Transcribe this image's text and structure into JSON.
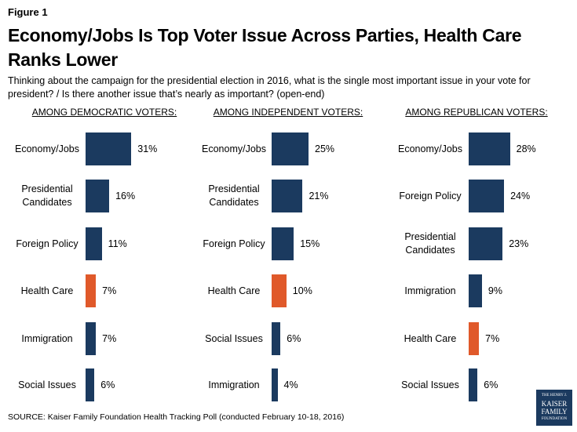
{
  "figure_label": "Figure 1",
  "title": "Economy/Jobs Is Top Voter Issue Across Parties, Health Care Ranks Lower",
  "subtitle": "Thinking about the campaign for the presidential election in 2016, what is the single most important issue in your vote for president? / Is there another issue that’s nearly as important? (open-end)",
  "source": "SOURCE: Kaiser Family Foundation Health Tracking Poll (conducted February 10-18, 2016)",
  "logo": [
    "THE HENRY J.",
    "KAISER",
    "FAMILY",
    "FOUNDATION"
  ],
  "chart_data": [
    {
      "type": "bar",
      "title": "AMONG DEMOCRATIC VOTERS:",
      "categories": [
        "Economy/Jobs",
        "Presidential Candidates",
        "Foreign Policy",
        "Health Care",
        "Immigration",
        "Social Issues"
      ],
      "values": [
        31,
        16,
        11,
        7,
        7,
        6
      ],
      "value_labels": [
        "31%",
        "16%",
        "11%",
        "7%",
        "7%",
        "6%"
      ],
      "colors": [
        "#1b3a5f",
        "#1b3a5f",
        "#1b3a5f",
        "#e0592a",
        "#1b3a5f",
        "#1b3a5f"
      ]
    },
    {
      "type": "bar",
      "title": "AMONG INDEPENDENT VOTERS:",
      "categories": [
        "Economy/Jobs",
        "Presidential Candidates",
        "Foreign Policy",
        "Health Care",
        "Social Issues",
        "Immigration"
      ],
      "values": [
        25,
        21,
        15,
        10,
        6,
        4
      ],
      "value_labels": [
        "25%",
        "21%",
        "15%",
        "10%",
        "6%",
        "4%"
      ],
      "colors": [
        "#1b3a5f",
        "#1b3a5f",
        "#1b3a5f",
        "#e0592a",
        "#1b3a5f",
        "#1b3a5f"
      ]
    },
    {
      "type": "bar",
      "title": "AMONG REPUBLICAN VOTERS:",
      "categories": [
        "Economy/Jobs",
        "Foreign Policy",
        "Presidential Candidates",
        "Immigration",
        "Health Care",
        "Social Issues"
      ],
      "values": [
        28,
        24,
        23,
        9,
        7,
        6
      ],
      "value_labels": [
        "28%",
        "24%",
        "23%",
        "9%",
        "7%",
        "6%"
      ],
      "colors": [
        "#1b3a5f",
        "#1b3a5f",
        "#1b3a5f",
        "#1b3a5f",
        "#e0592a",
        "#1b3a5f"
      ]
    }
  ]
}
